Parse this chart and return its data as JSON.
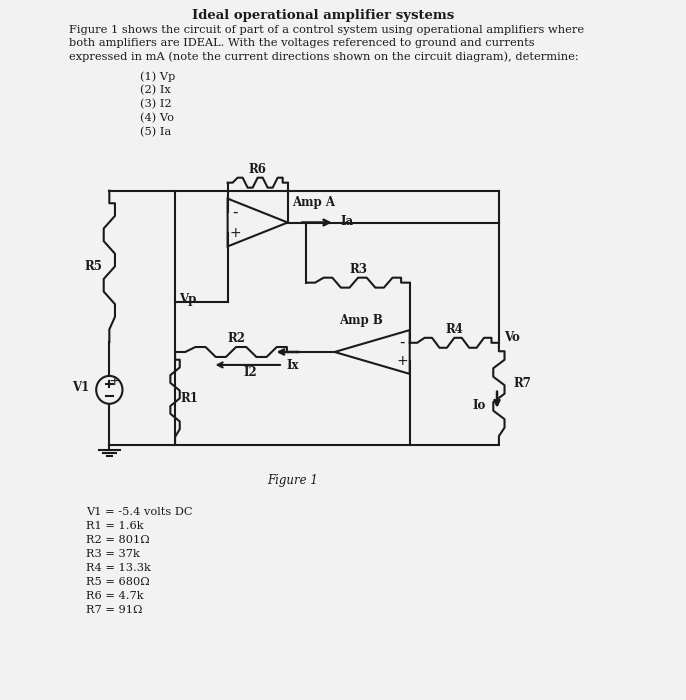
{
  "title": "Ideal operational amplifier systems",
  "paragraph1": "Figure 1 shows the circuit of part of a control system using operational amplifiers where",
  "paragraph2": "both amplifiers are IDEAL. With the voltages referenced to ground and currents",
  "paragraph3": "expressed in mA (note the current directions shown on the circuit diagram), determine:",
  "items": [
    "(1) Vp",
    "(2) Ix",
    "(3) I2",
    "(4) Vo",
    "(5) Ia"
  ],
  "figure_label": "Figure 1",
  "values": [
    "V1 = -5.4 volts DC",
    "R1 = 1.6k",
    "R2 = 801Ω",
    "R3 = 37k",
    "R4 = 13.3k",
    "R5 = 680Ω",
    "R6 = 4.7k",
    "R7 = 91Ω"
  ],
  "bg_color": "#f2f2f2",
  "line_color": "#1a1a1a",
  "text_color": "#1a1a1a",
  "lw": 1.5
}
